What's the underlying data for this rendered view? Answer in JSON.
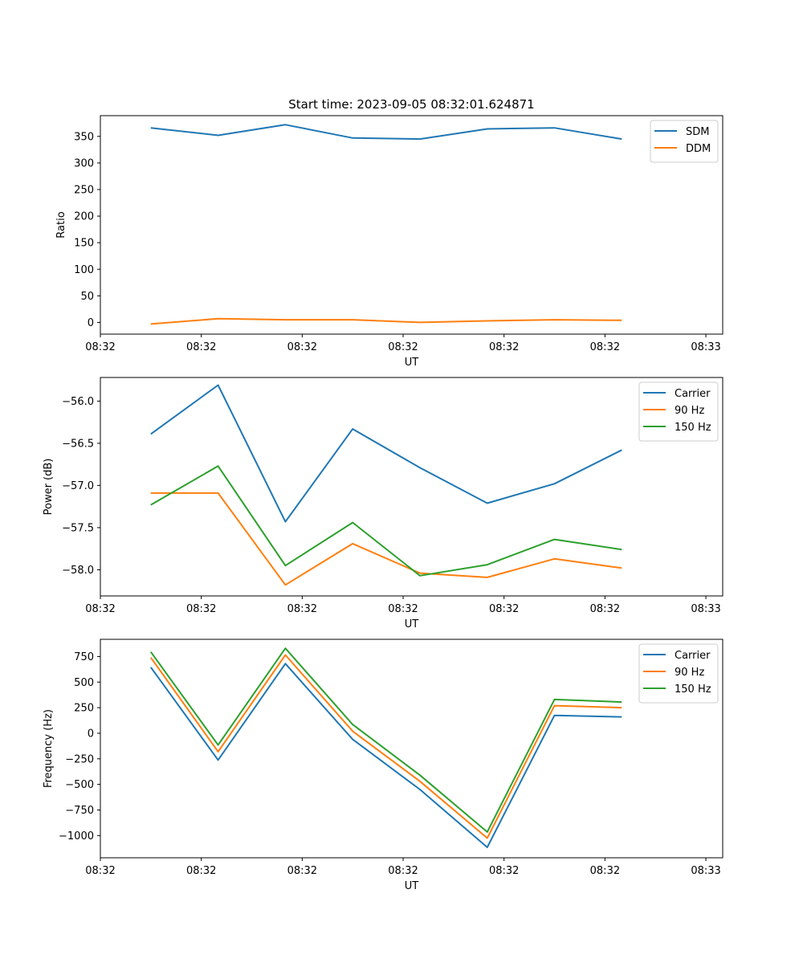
{
  "figure_title": "Start time: 2023-09-05 08:32:01.624871",
  "chart_data": [
    {
      "type": "line",
      "xlabel": "UT",
      "ylabel": "Ratio",
      "x": [
        0,
        1,
        2,
        3,
        4,
        5,
        6,
        7
      ],
      "xlim": [
        -0.75,
        8.5
      ],
      "xticks": [
        -0.75,
        0.75,
        2.25,
        3.75,
        5.25,
        6.75,
        8.25
      ],
      "xtick_labels": [
        "08:32",
        "08:32",
        "08:32",
        "08:32",
        "08:32",
        "08:32",
        "08:33"
      ],
      "ylim": [
        -22,
        389
      ],
      "yticks": [
        0,
        50,
        100,
        150,
        200,
        250,
        300,
        350
      ],
      "ytick_labels": [
        "0",
        "50",
        "100",
        "150",
        "200",
        "250",
        "300",
        "350"
      ],
      "legend_position": "top-right",
      "series": [
        {
          "name": "SDM",
          "color": "#1f77b4",
          "values": [
            366,
            352,
            372,
            347,
            345,
            364,
            366,
            345
          ]
        },
        {
          "name": "DDM",
          "color": "#ff7f0e",
          "values": [
            -3,
            7,
            5,
            5,
            0,
            3,
            5,
            4
          ]
        }
      ]
    },
    {
      "type": "line",
      "xlabel": "UT",
      "ylabel": "Power (dB)",
      "x": [
        0,
        1,
        2,
        3,
        4,
        5,
        6,
        7
      ],
      "xlim": [
        -0.75,
        8.5
      ],
      "xticks": [
        -0.75,
        0.75,
        2.25,
        3.75,
        5.25,
        6.75,
        8.25
      ],
      "xtick_labels": [
        "08:32",
        "08:32",
        "08:32",
        "08:32",
        "08:32",
        "08:32",
        "08:33"
      ],
      "ylim": [
        -58.31,
        -55.72
      ],
      "yticks": [
        -58.0,
        -57.5,
        -57.0,
        -56.5,
        -56.0
      ],
      "ytick_labels": [
        "−58.0",
        "−57.5",
        "−57.0",
        "−56.5",
        "−56.0"
      ],
      "legend_position": "top-right",
      "series": [
        {
          "name": "Carrier",
          "color": "#1f77b4",
          "values": [
            -56.39,
            -55.81,
            -57.43,
            -56.33,
            -56.79,
            -57.21,
            -56.98,
            -56.58
          ]
        },
        {
          "name": "90 Hz",
          "color": "#ff7f0e",
          "values": [
            -57.09,
            -57.09,
            -58.18,
            -57.69,
            -58.04,
            -58.09,
            -57.87,
            -57.98
          ]
        },
        {
          "name": "150 Hz",
          "color": "#2ca02c",
          "values": [
            -57.23,
            -56.77,
            -57.95,
            -57.44,
            -58.07,
            -57.94,
            -57.64,
            -57.76
          ]
        }
      ]
    },
    {
      "type": "line",
      "xlabel": "UT",
      "ylabel": "Frequency (Hz)",
      "x": [
        0,
        1,
        2,
        3,
        4,
        5,
        6,
        7
      ],
      "xlim": [
        -0.75,
        8.5
      ],
      "xticks": [
        -0.75,
        0.75,
        2.25,
        3.75,
        5.25,
        6.75,
        8.25
      ],
      "xtick_labels": [
        "08:32",
        "08:32",
        "08:32",
        "08:32",
        "08:32",
        "08:32",
        "08:33"
      ],
      "ylim": [
        -1217,
        918
      ],
      "yticks": [
        -1000,
        -750,
        -500,
        -250,
        0,
        250,
        500,
        750
      ],
      "ytick_labels": [
        "−1000",
        "−750",
        "−500",
        "−250",
        "0",
        "250",
        "500",
        "750"
      ],
      "legend_position": "top-right",
      "series": [
        {
          "name": "Carrier",
          "color": "#1f77b4",
          "values": [
            645,
            -262,
            680,
            -60,
            -550,
            -1115,
            175,
            160
          ]
        },
        {
          "name": "90 Hz",
          "color": "#ff7f0e",
          "values": [
            740,
            -180,
            765,
            20,
            -470,
            -1025,
            270,
            250
          ]
        },
        {
          "name": "150 Hz",
          "color": "#2ca02c",
          "values": [
            795,
            -115,
            830,
            85,
            -410,
            -965,
            330,
            305
          ]
        }
      ]
    }
  ]
}
